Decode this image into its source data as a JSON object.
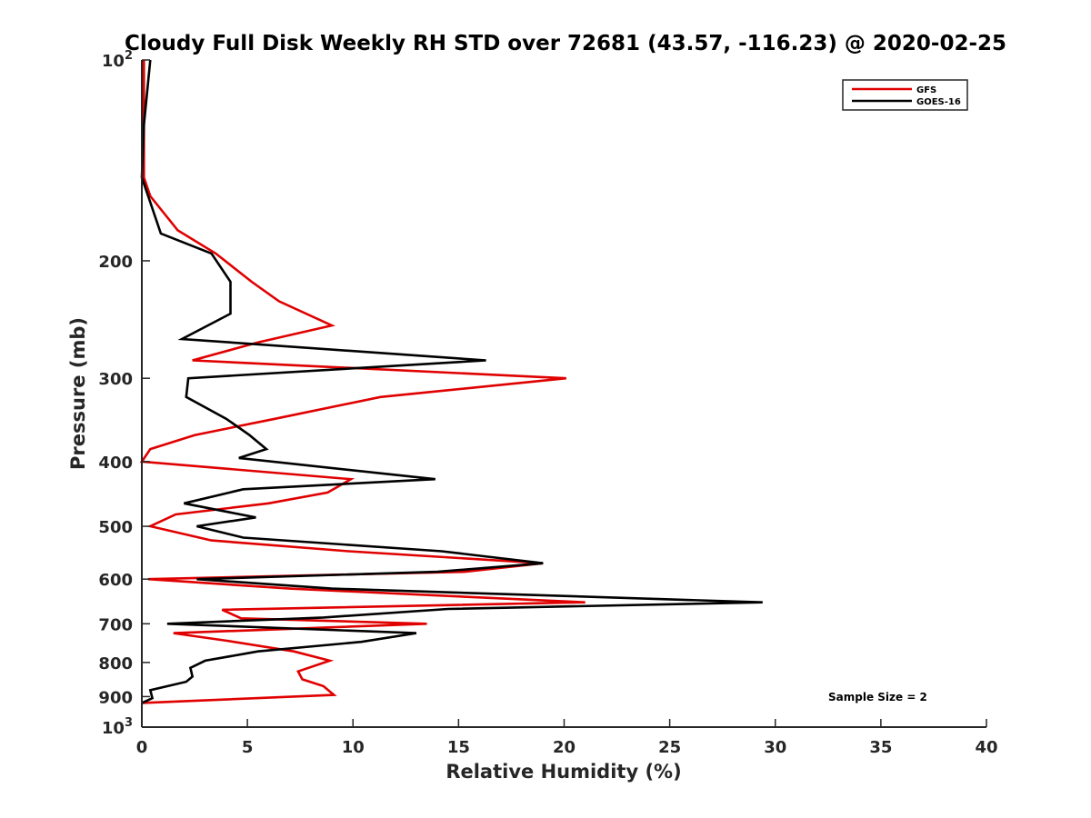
{
  "chart_data": {
    "type": "line",
    "title": "Cloudy Full Disk Weekly RH STD over 72681 (43.57, -116.23) @ 2020-02-25",
    "xlabel": "Relative Humidity (%)",
    "ylabel": "Pressure (mb)",
    "xlim": [
      0,
      40
    ],
    "ylim": [
      100,
      1000
    ],
    "y_scale": "log",
    "y_reversed": true,
    "grid": false,
    "legend_position": "top-right",
    "x_ticks": [
      {
        "value": 0,
        "label": "0"
      },
      {
        "value": 5,
        "label": "5"
      },
      {
        "value": 10,
        "label": "10"
      },
      {
        "value": 15,
        "label": "15"
      },
      {
        "value": 20,
        "label": "20"
      },
      {
        "value": 25,
        "label": "25"
      },
      {
        "value": 30,
        "label": "30"
      },
      {
        "value": 35,
        "label": "35"
      },
      {
        "value": 40,
        "label": "40"
      }
    ],
    "y_ticks": [
      {
        "value": 100,
        "base": "10",
        "exp": "2"
      },
      {
        "value": 200,
        "label": "200"
      },
      {
        "value": 300,
        "label": "300"
      },
      {
        "value": 400,
        "label": "400"
      },
      {
        "value": 500,
        "label": "500"
      },
      {
        "value": 600,
        "label": "600"
      },
      {
        "value": 700,
        "label": "700"
      },
      {
        "value": 800,
        "label": "800"
      },
      {
        "value": 900,
        "label": "900"
      },
      {
        "value": 1000,
        "base": "10",
        "exp": "3"
      }
    ],
    "series": [
      {
        "name": "GFS",
        "color": "#e00000",
        "points": [
          [
            0.1,
            100
          ],
          [
            0.1,
            125
          ],
          [
            0.1,
            150
          ],
          [
            0.4,
            160
          ],
          [
            1.7,
            180
          ],
          [
            3.5,
            195
          ],
          [
            5.2,
            215
          ],
          [
            6.5,
            230
          ],
          [
            9.0,
            250
          ],
          [
            5.5,
            265
          ],
          [
            2.4,
            282
          ],
          [
            20.1,
            300
          ],
          [
            11.3,
            320
          ],
          [
            6.3,
            345
          ],
          [
            2.5,
            365
          ],
          [
            0.4,
            383
          ],
          [
            0.0,
            400
          ],
          [
            9.9,
            425
          ],
          [
            8.8,
            445
          ],
          [
            6.0,
            462
          ],
          [
            1.6,
            480
          ],
          [
            0.4,
            500
          ],
          [
            3.3,
            525
          ],
          [
            9.8,
            545
          ],
          [
            19.0,
            568
          ],
          [
            15.3,
            585
          ],
          [
            0.3,
            600
          ],
          [
            7.0,
            620
          ],
          [
            21.0,
            650
          ],
          [
            3.8,
            667
          ],
          [
            4.7,
            687
          ],
          [
            13.5,
            700
          ],
          [
            1.5,
            723
          ],
          [
            4.0,
            742
          ],
          [
            7.2,
            770
          ],
          [
            8.9,
            795
          ],
          [
            7.4,
            825
          ],
          [
            7.6,
            848
          ],
          [
            8.6,
            868
          ],
          [
            9.1,
            895
          ],
          [
            0.0,
            920
          ]
        ]
      },
      {
        "name": "GOES-16",
        "color": "#000000",
        "points": [
          [
            0.4,
            100
          ],
          [
            0.1,
            125
          ],
          [
            0.0,
            150
          ],
          [
            0.3,
            160
          ],
          [
            0.9,
            182
          ],
          [
            3.3,
            195
          ],
          [
            4.2,
            215
          ],
          [
            4.2,
            240
          ],
          [
            1.9,
            262
          ],
          [
            16.3,
            282
          ],
          [
            2.2,
            300
          ],
          [
            2.1,
            320
          ],
          [
            4.0,
            345
          ],
          [
            5.1,
            365
          ],
          [
            5.9,
            383
          ],
          [
            4.6,
            395
          ],
          [
            13.9,
            425
          ],
          [
            4.8,
            440
          ],
          [
            2.0,
            462
          ],
          [
            5.4,
            485
          ],
          [
            2.6,
            500
          ],
          [
            4.8,
            520
          ],
          [
            14.2,
            545
          ],
          [
            19.0,
            568
          ],
          [
            14.0,
            585
          ],
          [
            2.6,
            600
          ],
          [
            9.0,
            620
          ],
          [
            29.4,
            650
          ],
          [
            14.5,
            665
          ],
          [
            8.6,
            685
          ],
          [
            1.2,
            700
          ],
          [
            13.0,
            723
          ],
          [
            10.4,
            745
          ],
          [
            5.5,
            770
          ],
          [
            3.0,
            795
          ],
          [
            2.3,
            815
          ],
          [
            2.4,
            840
          ],
          [
            2.1,
            855
          ],
          [
            0.4,
            880
          ],
          [
            0.5,
            905
          ],
          [
            0.0,
            920
          ]
        ]
      }
    ],
    "annotation": "Sample Size = 2"
  }
}
